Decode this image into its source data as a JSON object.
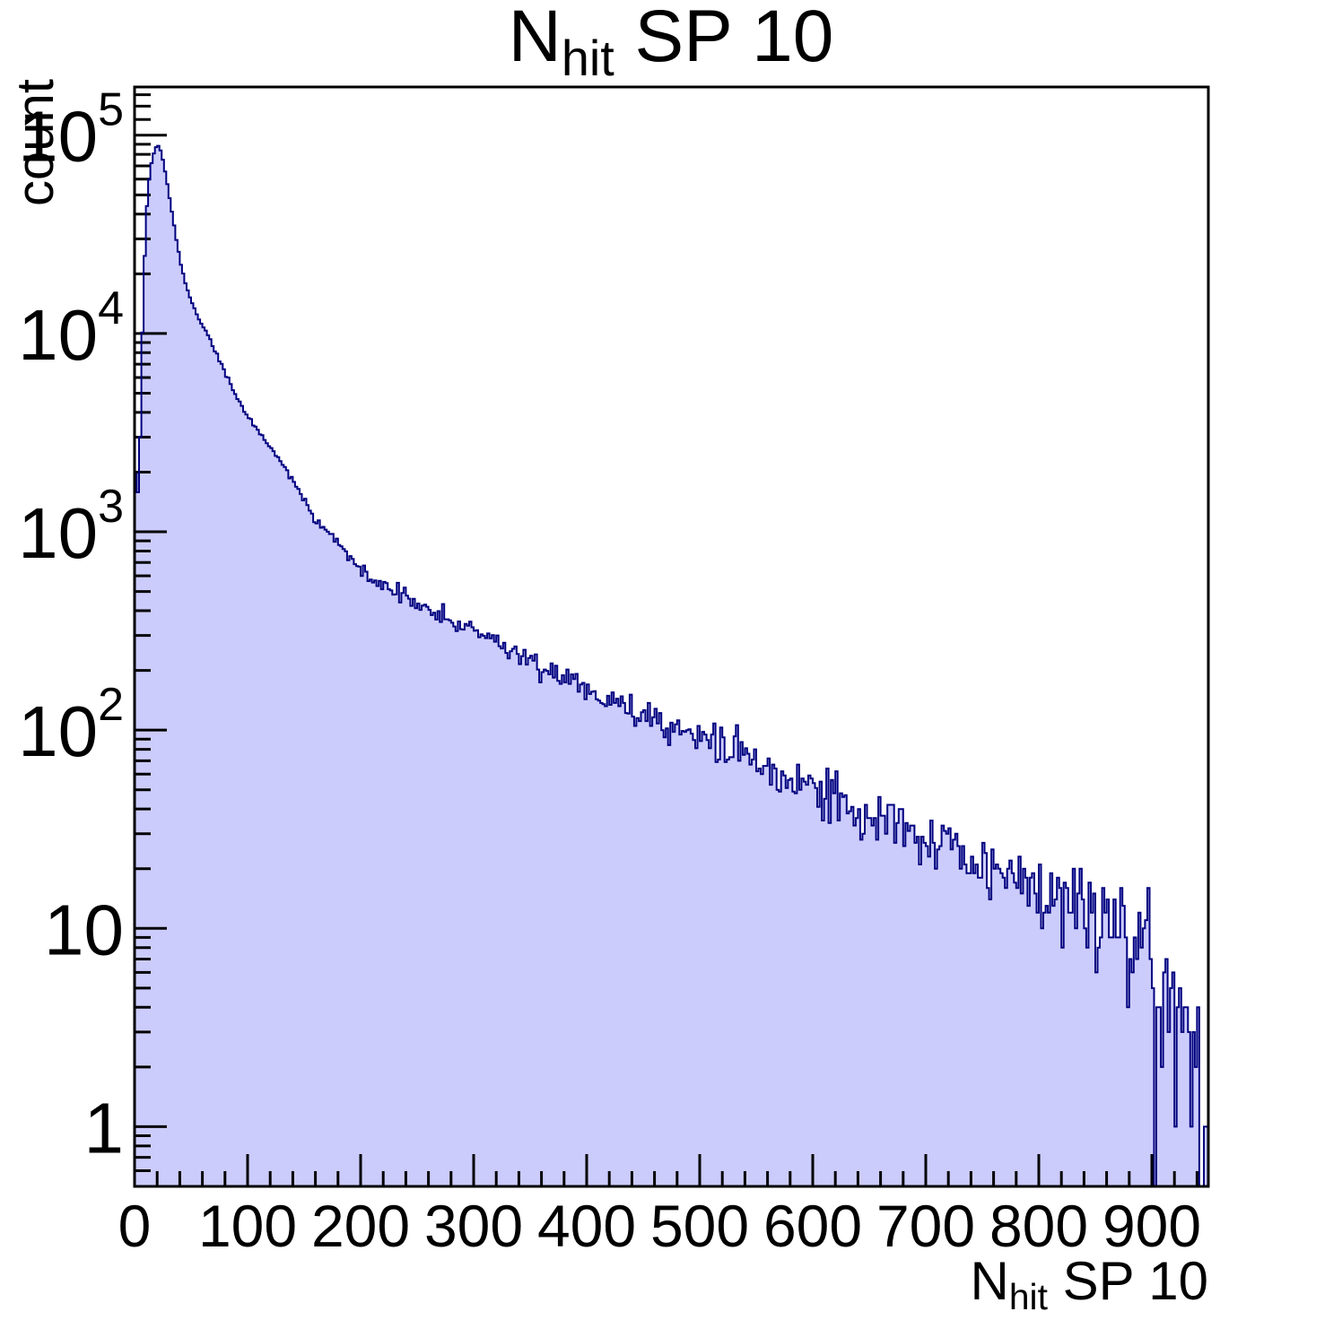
{
  "title": {
    "prefix": "N",
    "sub": "hit",
    "suffix": " SP 10"
  },
  "y_axis": {
    "label": "count"
  },
  "x_axis": {
    "label_prefix": "N",
    "label_sub": "hit",
    "label_suffix": " SP 10"
  },
  "chart_data": {
    "type": "histogram",
    "title": "N_hit SP 10",
    "xlabel": "N_hit SP 10",
    "ylabel": "count",
    "y_scale": "log",
    "x_range": [
      0,
      950
    ],
    "y_range": [
      0.5,
      175000
    ],
    "bin_width": 2,
    "x_major_ticks": [
      0,
      100,
      200,
      300,
      400,
      500,
      600,
      700,
      800,
      900
    ],
    "x_minor_step": 20,
    "y_major_ticks": [
      {
        "value": 1,
        "base": "1",
        "exp": ""
      },
      {
        "value": 10,
        "base": "10",
        "exp": ""
      },
      {
        "value": 100,
        "base": "10",
        "exp": "2"
      },
      {
        "value": 1000,
        "base": "10",
        "exp": "3"
      },
      {
        "value": 10000,
        "base": "10",
        "exp": "4"
      },
      {
        "value": 100000,
        "base": "10",
        "exp": "5"
      }
    ],
    "y_extra_minor_ticks": [
      120000,
      140000,
      160000
    ],
    "peak": {
      "x": 20,
      "count": 90000
    },
    "envelope": [
      [
        0,
        2600
      ],
      [
        2,
        1400
      ],
      [
        4,
        1750
      ],
      [
        5,
        3000
      ],
      [
        6,
        6000
      ],
      [
        8,
        17000
      ],
      [
        10,
        36000
      ],
      [
        12,
        54000
      ],
      [
        14,
        67000
      ],
      [
        16,
        77000
      ],
      [
        18,
        85000
      ],
      [
        20,
        90000
      ],
      [
        22,
        87500
      ],
      [
        24,
        80000
      ],
      [
        26,
        70500
      ],
      [
        28,
        61000
      ],
      [
        30,
        52000
      ],
      [
        33,
        41000
      ],
      [
        36,
        32000
      ],
      [
        40,
        23500
      ],
      [
        44,
        18800
      ],
      [
        48,
        15800
      ],
      [
        52,
        13800
      ],
      [
        58,
        11600
      ],
      [
        64,
        10000
      ],
      [
        70,
        8400
      ],
      [
        76,
        7100
      ],
      [
        82,
        6000
      ],
      [
        88,
        5100
      ],
      [
        94,
        4400
      ],
      [
        100,
        3850
      ],
      [
        108,
        3300
      ],
      [
        116,
        2870
      ],
      [
        124,
        2500
      ],
      [
        132,
        2180
      ],
      [
        140,
        1830
      ],
      [
        148,
        1480
      ],
      [
        154,
        1260
      ],
      [
        160,
        1120
      ],
      [
        166,
        1050
      ],
      [
        172,
        1000
      ],
      [
        178,
        900
      ],
      [
        186,
        800
      ],
      [
        194,
        710
      ],
      [
        200,
        650
      ],
      [
        210,
        585
      ],
      [
        220,
        545
      ],
      [
        230,
        505
      ],
      [
        240,
        472
      ],
      [
        250,
        448
      ],
      [
        260,
        412
      ],
      [
        270,
        382
      ],
      [
        280,
        356
      ],
      [
        290,
        336
      ],
      [
        300,
        318
      ],
      [
        315,
        286
      ],
      [
        330,
        256
      ],
      [
        345,
        230
      ],
      [
        360,
        207
      ],
      [
        375,
        190
      ],
      [
        390,
        173
      ],
      [
        400,
        162
      ],
      [
        420,
        144
      ],
      [
        440,
        129
      ],
      [
        460,
        116
      ],
      [
        480,
        104
      ],
      [
        500,
        94
      ],
      [
        520,
        83
      ],
      [
        540,
        73
      ],
      [
        560,
        64
      ],
      [
        580,
        57
      ],
      [
        600,
        52
      ],
      [
        620,
        46
      ],
      [
        640,
        41
      ],
      [
        660,
        37
      ],
      [
        680,
        33
      ],
      [
        700,
        30
      ],
      [
        720,
        26.5
      ],
      [
        740,
        23.5
      ],
      [
        760,
        21
      ],
      [
        780,
        18.5
      ],
      [
        800,
        16.5
      ],
      [
        820,
        14.5
      ],
      [
        840,
        12.8
      ],
      [
        860,
        11
      ],
      [
        880,
        9.2
      ],
      [
        900,
        7.6
      ],
      [
        915,
        5.6
      ],
      [
        925,
        3.6
      ],
      [
        932,
        2.6
      ],
      [
        940,
        1.6
      ],
      [
        946,
        1.0
      ],
      [
        950,
        0.7
      ]
    ],
    "noise_seed": 20240601,
    "colors": {
      "fill": "#ccccfc",
      "line": "#000080",
      "axis": "#000000",
      "background": "#ffffff"
    }
  }
}
